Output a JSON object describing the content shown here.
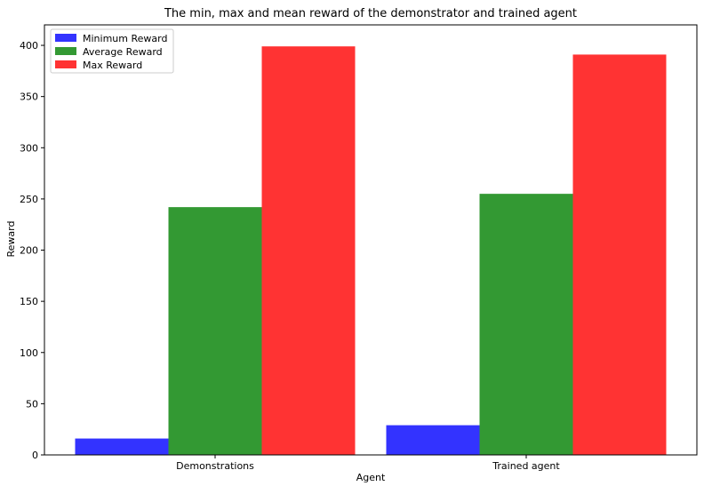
{
  "chart_data": {
    "type": "bar",
    "title": "The min, max and mean reward of the demonstrator and trained agent",
    "xlabel": "Agent",
    "ylabel": "Reward",
    "categories": [
      "Demonstrations",
      "Trained agent"
    ],
    "ylim": [
      0,
      420
    ],
    "yticks": [
      0,
      50,
      100,
      150,
      200,
      250,
      300,
      350,
      400
    ],
    "grid": false,
    "legend_position": "top-left",
    "series": [
      {
        "name": "Minimum Reward",
        "values": [
          16,
          29
        ],
        "color": "#3333ff"
      },
      {
        "name": "Average Reward",
        "values": [
          242,
          255
        ],
        "color": "#339933"
      },
      {
        "name": "Max Reward",
        "values": [
          399,
          391
        ],
        "color": "#ff3333"
      }
    ]
  }
}
